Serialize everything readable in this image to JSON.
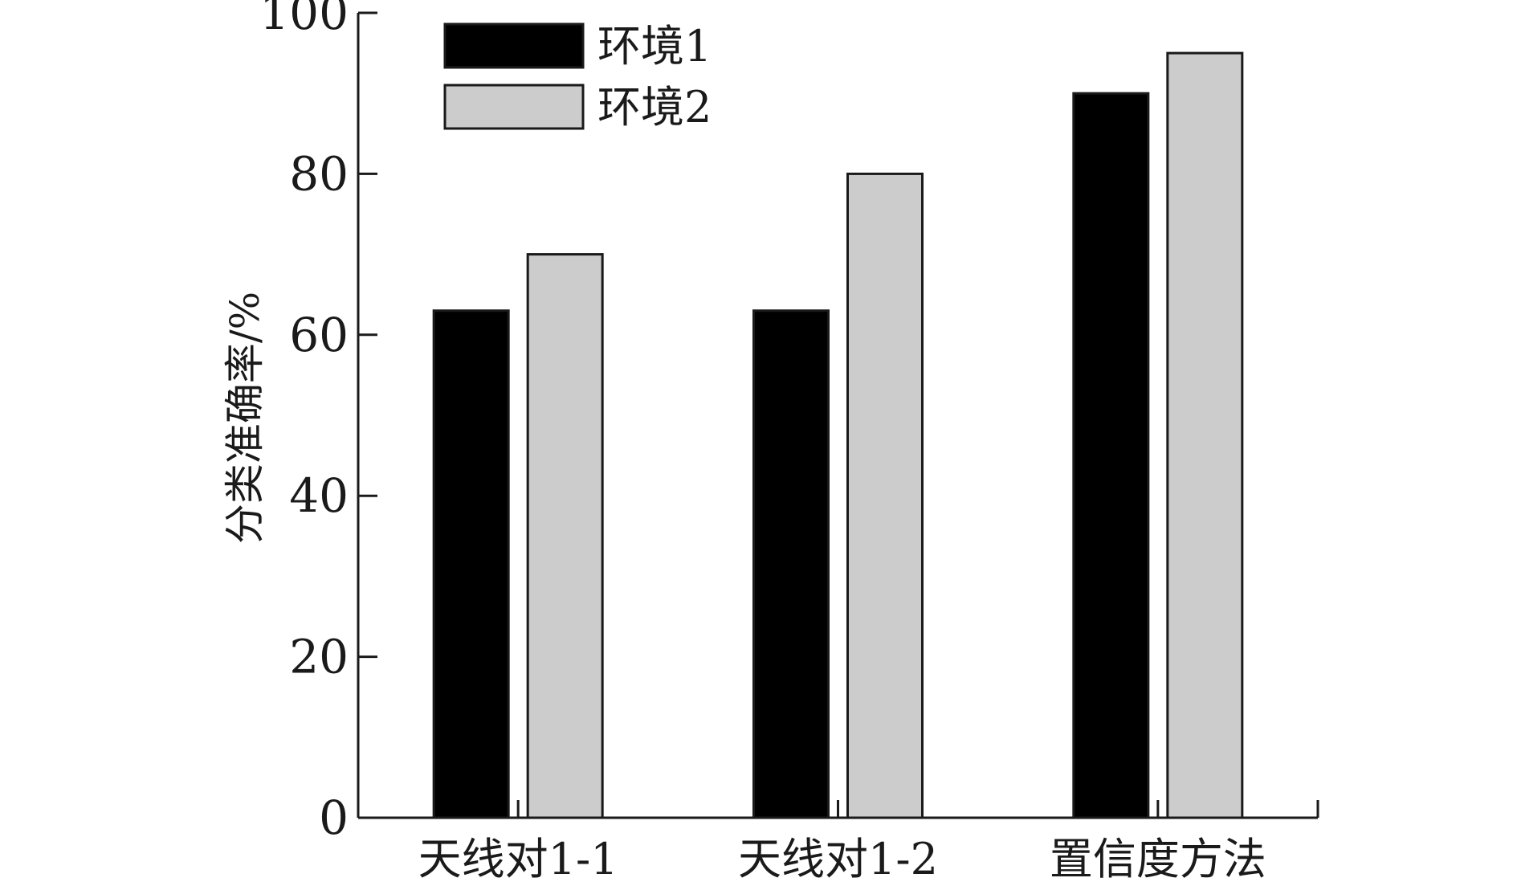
{
  "chart_data": {
    "type": "bar",
    "title": "",
    "xlabel": "",
    "ylabel": "分类准确率/%",
    "ylim": [
      0,
      100
    ],
    "yticks": [
      0,
      20,
      40,
      60,
      80,
      100
    ],
    "grid": false,
    "legend_position": "top-left",
    "categories": [
      "天线对1-1",
      "天线对1-2",
      "置信度方法"
    ],
    "series": [
      {
        "name": "环境1",
        "color": "#000000",
        "values": [
          63,
          63,
          90
        ]
      },
      {
        "name": "环境2",
        "color": "#cccccc",
        "values": [
          70,
          80,
          95
        ]
      }
    ]
  }
}
